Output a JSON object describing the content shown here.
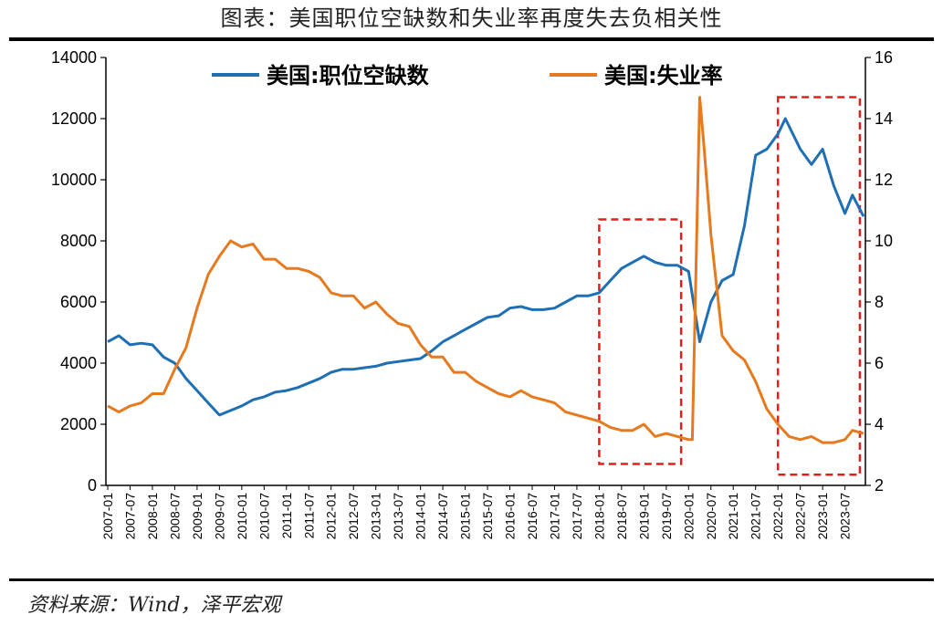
{
  "title": "图表：美国职位空缺数和失业率再度失去负相关性",
  "source": "资料来源：Wind，泽平宏观",
  "chart_data": {
    "type": "line",
    "title": "图表：美国职位空缺数和失业率再度失去负相关性",
    "x_ticks": [
      "2007-01",
      "2007-07",
      "2008-01",
      "2008-07",
      "2009-01",
      "2009-07",
      "2010-01",
      "2010-07",
      "2011-01",
      "2011-07",
      "2012-01",
      "2012-07",
      "2013-01",
      "2013-07",
      "2014-01",
      "2014-07",
      "2015-01",
      "2015-07",
      "2016-01",
      "2016-07",
      "2017-01",
      "2017-07",
      "2018-01",
      "2018-07",
      "2019-01",
      "2019-07",
      "2020-01",
      "2020-07",
      "2021-01",
      "2021-07",
      "2022-01",
      "2022-07",
      "2023-01",
      "2023-07"
    ],
    "y_left": {
      "min": 0,
      "max": 14000,
      "ticks": [
        0,
        2000,
        4000,
        6000,
        8000,
        10000,
        12000,
        14000
      ]
    },
    "y_right": {
      "min": 2,
      "max": 16,
      "ticks": [
        2,
        4,
        6,
        8,
        10,
        12,
        14,
        16
      ]
    },
    "legend_position": "top",
    "grid": false,
    "series": [
      {
        "name": "美国:职位空缺数",
        "axis": "left",
        "color": "#1f6fb4",
        "points": [
          [
            "2007-01",
            4700
          ],
          [
            "2007-04",
            4900
          ],
          [
            "2007-07",
            4600
          ],
          [
            "2007-10",
            4650
          ],
          [
            "2008-01",
            4600
          ],
          [
            "2008-04",
            4200
          ],
          [
            "2008-07",
            4000
          ],
          [
            "2008-10",
            3500
          ],
          [
            "2009-01",
            3100
          ],
          [
            "2009-04",
            2700
          ],
          [
            "2009-07",
            2300
          ],
          [
            "2009-10",
            2450
          ],
          [
            "2010-01",
            2600
          ],
          [
            "2010-04",
            2800
          ],
          [
            "2010-07",
            2900
          ],
          [
            "2010-10",
            3050
          ],
          [
            "2011-01",
            3100
          ],
          [
            "2011-04",
            3200
          ],
          [
            "2011-07",
            3350
          ],
          [
            "2011-10",
            3500
          ],
          [
            "2012-01",
            3700
          ],
          [
            "2012-04",
            3800
          ],
          [
            "2012-07",
            3800
          ],
          [
            "2012-10",
            3850
          ],
          [
            "2013-01",
            3900
          ],
          [
            "2013-04",
            4000
          ],
          [
            "2013-07",
            4050
          ],
          [
            "2013-10",
            4100
          ],
          [
            "2014-01",
            4150
          ],
          [
            "2014-04",
            4400
          ],
          [
            "2014-07",
            4700
          ],
          [
            "2014-10",
            4900
          ],
          [
            "2015-01",
            5100
          ],
          [
            "2015-04",
            5300
          ],
          [
            "2015-07",
            5500
          ],
          [
            "2015-10",
            5550
          ],
          [
            "2016-01",
            5800
          ],
          [
            "2016-04",
            5850
          ],
          [
            "2016-07",
            5750
          ],
          [
            "2016-10",
            5750
          ],
          [
            "2017-01",
            5800
          ],
          [
            "2017-04",
            6000
          ],
          [
            "2017-07",
            6200
          ],
          [
            "2017-10",
            6200
          ],
          [
            "2018-01",
            6300
          ],
          [
            "2018-04",
            6700
          ],
          [
            "2018-07",
            7100
          ],
          [
            "2018-10",
            7300
          ],
          [
            "2019-01",
            7500
          ],
          [
            "2019-04",
            7300
          ],
          [
            "2019-07",
            7200
          ],
          [
            "2019-10",
            7200
          ],
          [
            "2020-01",
            7000
          ],
          [
            "2020-04",
            4700
          ],
          [
            "2020-07",
            6000
          ],
          [
            "2020-10",
            6700
          ],
          [
            "2021-01",
            6900
          ],
          [
            "2021-04",
            8500
          ],
          [
            "2021-07",
            10800
          ],
          [
            "2021-10",
            11000
          ],
          [
            "2022-01",
            11500
          ],
          [
            "2022-03",
            12000
          ],
          [
            "2022-07",
            11000
          ],
          [
            "2022-10",
            10500
          ],
          [
            "2023-01",
            11000
          ],
          [
            "2023-04",
            9800
          ],
          [
            "2023-07",
            8900
          ],
          [
            "2023-09",
            9500
          ],
          [
            "2023-12",
            8800
          ]
        ]
      },
      {
        "name": "美国:失业率",
        "axis": "right",
        "color": "#e57a1f",
        "points": [
          [
            "2007-01",
            4.6
          ],
          [
            "2007-04",
            4.4
          ],
          [
            "2007-07",
            4.6
          ],
          [
            "2007-10",
            4.7
          ],
          [
            "2008-01",
            5.0
          ],
          [
            "2008-04",
            5.0
          ],
          [
            "2008-07",
            5.8
          ],
          [
            "2008-10",
            6.5
          ],
          [
            "2009-01",
            7.8
          ],
          [
            "2009-04",
            8.9
          ],
          [
            "2009-07",
            9.5
          ],
          [
            "2009-10",
            10.0
          ],
          [
            "2010-01",
            9.8
          ],
          [
            "2010-04",
            9.9
          ],
          [
            "2010-07",
            9.4
          ],
          [
            "2010-10",
            9.4
          ],
          [
            "2011-01",
            9.1
          ],
          [
            "2011-04",
            9.1
          ],
          [
            "2011-07",
            9.0
          ],
          [
            "2011-10",
            8.8
          ],
          [
            "2012-01",
            8.3
          ],
          [
            "2012-04",
            8.2
          ],
          [
            "2012-07",
            8.2
          ],
          [
            "2012-10",
            7.8
          ],
          [
            "2013-01",
            8.0
          ],
          [
            "2013-04",
            7.6
          ],
          [
            "2013-07",
            7.3
          ],
          [
            "2013-10",
            7.2
          ],
          [
            "2014-01",
            6.6
          ],
          [
            "2014-04",
            6.2
          ],
          [
            "2014-07",
            6.2
          ],
          [
            "2014-10",
            5.7
          ],
          [
            "2015-01",
            5.7
          ],
          [
            "2015-04",
            5.4
          ],
          [
            "2015-07",
            5.2
          ],
          [
            "2015-10",
            5.0
          ],
          [
            "2016-01",
            4.9
          ],
          [
            "2016-04",
            5.1
          ],
          [
            "2016-07",
            4.9
          ],
          [
            "2016-10",
            4.8
          ],
          [
            "2017-01",
            4.7
          ],
          [
            "2017-04",
            4.4
          ],
          [
            "2017-07",
            4.3
          ],
          [
            "2017-10",
            4.2
          ],
          [
            "2018-01",
            4.1
          ],
          [
            "2018-04",
            3.9
          ],
          [
            "2018-07",
            3.8
          ],
          [
            "2018-10",
            3.8
          ],
          [
            "2019-01",
            4.0
          ],
          [
            "2019-04",
            3.6
          ],
          [
            "2019-07",
            3.7
          ],
          [
            "2019-10",
            3.6
          ],
          [
            "2020-01",
            3.5
          ],
          [
            "2020-02",
            3.5
          ],
          [
            "2020-04",
            14.7
          ],
          [
            "2020-05",
            13.3
          ],
          [
            "2020-07",
            10.2
          ],
          [
            "2020-10",
            6.9
          ],
          [
            "2021-01",
            6.4
          ],
          [
            "2021-04",
            6.1
          ],
          [
            "2021-07",
            5.4
          ],
          [
            "2021-10",
            4.5
          ],
          [
            "2022-01",
            4.0
          ],
          [
            "2022-04",
            3.6
          ],
          [
            "2022-07",
            3.5
          ],
          [
            "2022-10",
            3.6
          ],
          [
            "2023-01",
            3.4
          ],
          [
            "2023-04",
            3.4
          ],
          [
            "2023-07",
            3.5
          ],
          [
            "2023-09",
            3.8
          ],
          [
            "2023-12",
            3.7
          ]
        ]
      }
    ],
    "annotations": [
      {
        "type": "dashed-rect",
        "color": "#e02020",
        "x_from": "2018-01",
        "x_to": "2019-11",
        "y_right_from": 2.7,
        "y_right_to": 10.7
      },
      {
        "type": "dashed-rect",
        "color": "#e02020",
        "x_from": "2022-01",
        "x_to": "2023-11",
        "y_right_from": 2.35,
        "y_right_to": 14.7
      }
    ]
  }
}
